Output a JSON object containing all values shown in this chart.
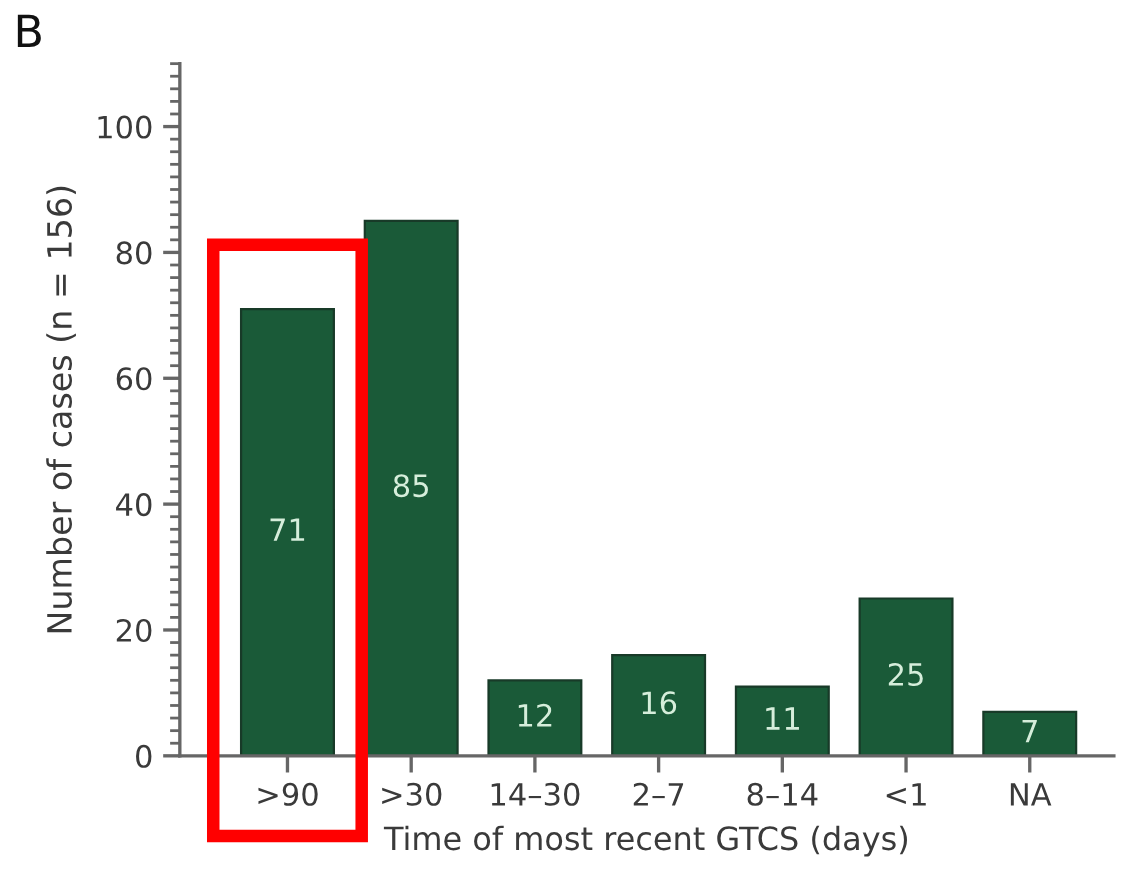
{
  "chart_data": {
    "type": "bar",
    "title": "B",
    "xlabel": "Time of most recent GTCS (days)",
    "ylabel": "Number of cases (n = 156)",
    "categories": [
      ">90",
      ">30",
      "14–30",
      "2–7",
      "8–14",
      "<1",
      "NA"
    ],
    "values": [
      71,
      85,
      12,
      16,
      11,
      25,
      7
    ],
    "color": "#1a5a38",
    "ylim": [
      0,
      110
    ],
    "yticks": [
      0,
      20,
      40,
      60,
      80,
      100
    ],
    "data_labels": true
  }
}
